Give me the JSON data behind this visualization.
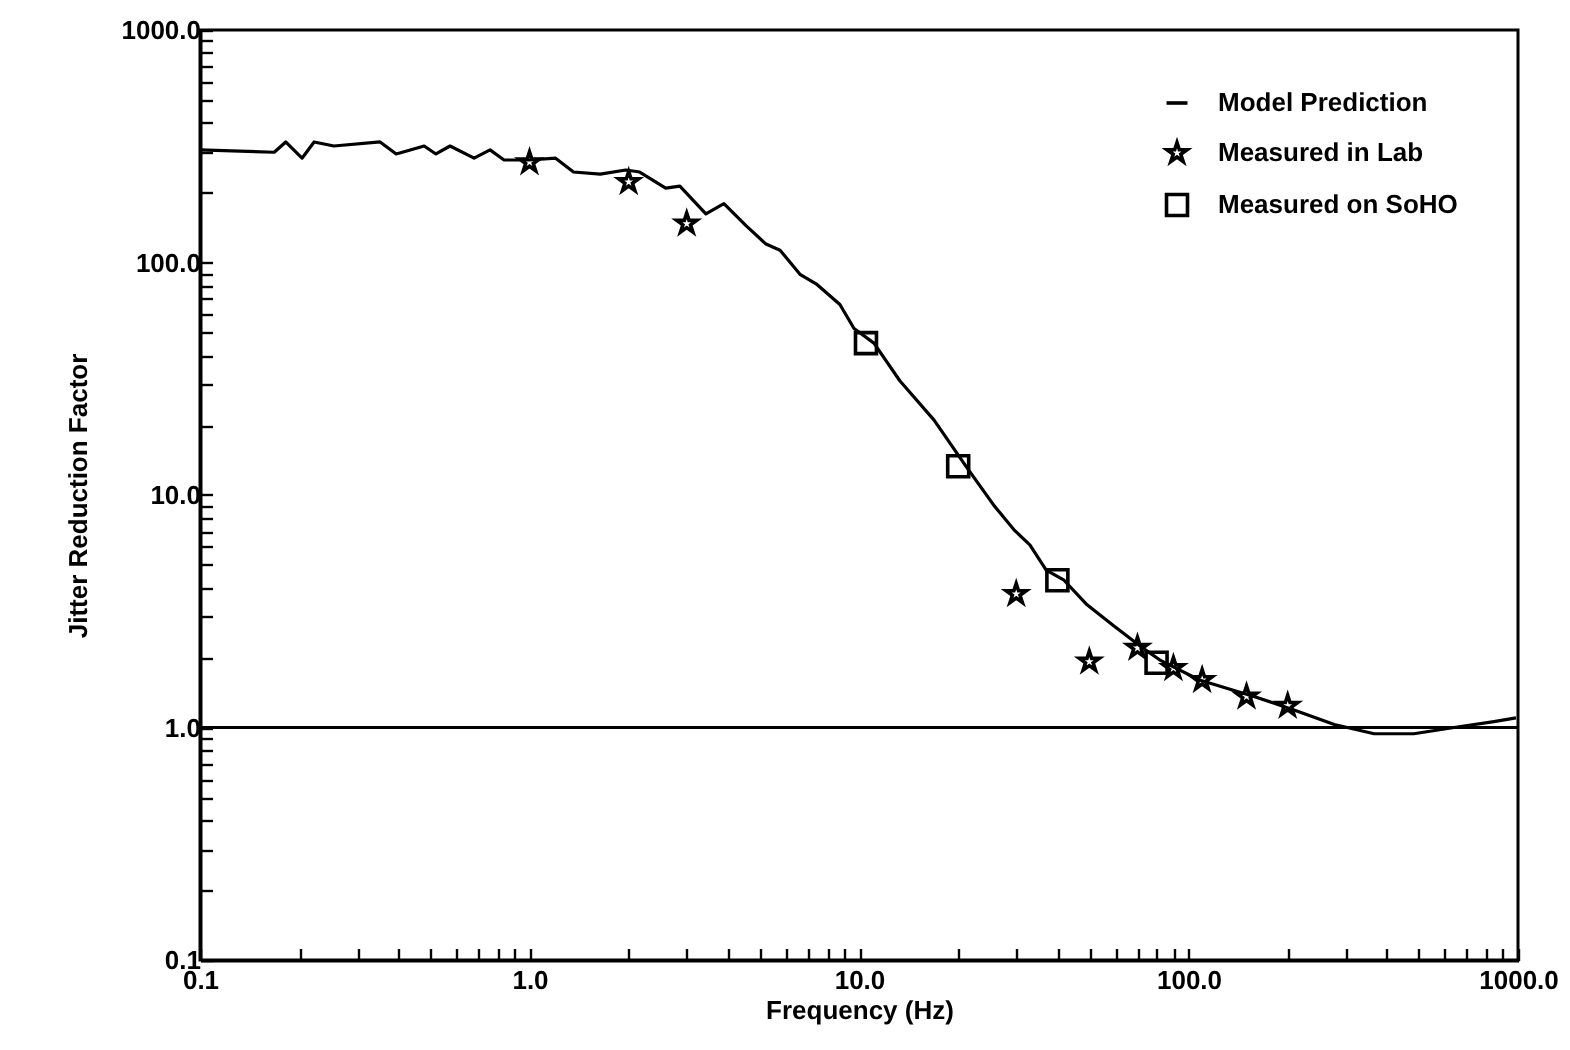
{
  "chart_data": {
    "type": "line",
    "xlabel": "Frequency (Hz)",
    "ylabel": "Jitter Reduction Factor",
    "log": "xy",
    "grid": false,
    "legend": "top right",
    "xlim": [
      0.1,
      1000
    ],
    "ylim": [
      0.1,
      1000
    ],
    "xticks": [
      {
        "value": 0.1,
        "label": "0.1"
      },
      {
        "value": 0.2,
        "label": null
      },
      {
        "value": 0.3,
        "label": null
      },
      {
        "value": 0.4,
        "label": null
      },
      {
        "value": 0.5,
        "label": null
      },
      {
        "value": 0.6,
        "label": null
      },
      {
        "value": 0.7,
        "label": null
      },
      {
        "value": 0.8,
        "label": null
      },
      {
        "value": 0.9,
        "label": null
      },
      {
        "value": 1,
        "label": "1.0"
      },
      {
        "value": 2,
        "label": null
      },
      {
        "value": 3,
        "label": null
      },
      {
        "value": 4,
        "label": null
      },
      {
        "value": 5,
        "label": null
      },
      {
        "value": 6,
        "label": null
      },
      {
        "value": 7,
        "label": null
      },
      {
        "value": 8,
        "label": null
      },
      {
        "value": 9,
        "label": null
      },
      {
        "value": 10,
        "label": "10.0"
      },
      {
        "value": 20,
        "label": null
      },
      {
        "value": 30,
        "label": null
      },
      {
        "value": 40,
        "label": null
      },
      {
        "value": 50,
        "label": null
      },
      {
        "value": 60,
        "label": null
      },
      {
        "value": 70,
        "label": null
      },
      {
        "value": 80,
        "label": null
      },
      {
        "value": 90,
        "label": null
      },
      {
        "value": 100,
        "label": "100.0"
      },
      {
        "value": 200,
        "label": null
      },
      {
        "value": 300,
        "label": null
      },
      {
        "value": 400,
        "label": null
      },
      {
        "value": 500,
        "label": null
      },
      {
        "value": 600,
        "label": null
      },
      {
        "value": 700,
        "label": null
      },
      {
        "value": 800,
        "label": null
      },
      {
        "value": 900,
        "label": null
      },
      {
        "value": 1000,
        "label": "1000.0"
      }
    ],
    "yticks": [
      {
        "value": 0.1,
        "label": "0.1"
      },
      {
        "value": 0.2,
        "label": null
      },
      {
        "value": 0.3,
        "label": null
      },
      {
        "value": 0.4,
        "label": null
      },
      {
        "value": 0.5,
        "label": null
      },
      {
        "value": 0.6,
        "label": null
      },
      {
        "value": 0.7,
        "label": null
      },
      {
        "value": 0.8,
        "label": null
      },
      {
        "value": 0.9,
        "label": null
      },
      {
        "value": 1,
        "label": "1.0"
      },
      {
        "value": 2,
        "label": null
      },
      {
        "value": 3,
        "label": null
      },
      {
        "value": 4,
        "label": null
      },
      {
        "value": 5,
        "label": null
      },
      {
        "value": 6,
        "label": null
      },
      {
        "value": 7,
        "label": null
      },
      {
        "value": 8,
        "label": null
      },
      {
        "value": 9,
        "label": null
      },
      {
        "value": 10,
        "label": "10.0"
      },
      {
        "value": 20,
        "label": null
      },
      {
        "value": 30,
        "label": null
      },
      {
        "value": 40,
        "label": null
      },
      {
        "value": 50,
        "label": null
      },
      {
        "value": 60,
        "label": null
      },
      {
        "value": 70,
        "label": null
      },
      {
        "value": 80,
        "label": null
      },
      {
        "value": 90,
        "label": null
      },
      {
        "value": 100,
        "label": "100.0"
      },
      {
        "value": 200,
        "label": null
      },
      {
        "value": 300,
        "label": null
      },
      {
        "value": 400,
        "label": null
      },
      {
        "value": 500,
        "label": null
      },
      {
        "value": 600,
        "label": null
      },
      {
        "value": 700,
        "label": null
      },
      {
        "value": 800,
        "label": null
      },
      {
        "value": 900,
        "label": null
      },
      {
        "value": 1000,
        "label": "1000.0"
      }
    ],
    "ref_lines": [
      {
        "axis": "y",
        "value": 1.0,
        "color": "#000000"
      }
    ],
    "series": [
      {
        "name": "Model Prediction",
        "type": "line",
        "color": "#000000",
        "line_style": "solid",
        "x": [
          0.1,
          0.168,
          0.182,
          0.204,
          0.222,
          0.255,
          0.352,
          0.394,
          0.479,
          0.52,
          0.574,
          0.679,
          0.759,
          0.837,
          1.0,
          1.2,
          1.36,
          1.64,
          1.96,
          2.16,
          2.59,
          2.86,
          3.43,
          3.89,
          4.54,
          5.22,
          5.76,
          6.62,
          7.41,
          8.75,
          9.66,
          11.1,
          13.3,
          16.9,
          21.1,
          25.7,
          29.5,
          33.0,
          37.0,
          41.9,
          48.9,
          59.4,
          71.3,
          81.9,
          108,
          158,
          209,
          277,
          366,
          483,
          640,
          845,
          986
        ],
        "values": [
          305,
          298,
          330,
          281,
          330,
          317,
          330,
          293,
          317,
          293,
          317,
          281,
          305,
          276,
          276,
          281,
          245,
          240,
          250,
          245,
          209,
          213,
          162,
          179,
          144,
          120,
          113,
          89,
          81,
          66,
          52,
          45,
          31,
          21,
          13.3,
          9.0,
          7.1,
          6.1,
          4.75,
          4.3,
          3.4,
          2.73,
          2.24,
          1.95,
          1.6,
          1.36,
          1.19,
          1.03,
          0.94,
          0.94,
          1.0,
          1.06,
          1.1
        ]
      },
      {
        "name": "Measured in Lab",
        "type": "scatter",
        "marker": "star",
        "color": "#000000",
        "x": [
          1,
          2,
          3,
          30,
          50,
          70,
          90,
          110,
          150,
          200
        ],
        "values": [
          270,
          222,
          147,
          3.75,
          1.92,
          2.2,
          1.8,
          1.6,
          1.36,
          1.24
        ]
      },
      {
        "name": "Measured on SoHO",
        "type": "scatter",
        "marker": "square",
        "color": "#000000",
        "x": [
          10.5,
          20,
          40,
          80
        ],
        "values": [
          45,
          13.3,
          4.3,
          1.9
        ]
      }
    ]
  }
}
